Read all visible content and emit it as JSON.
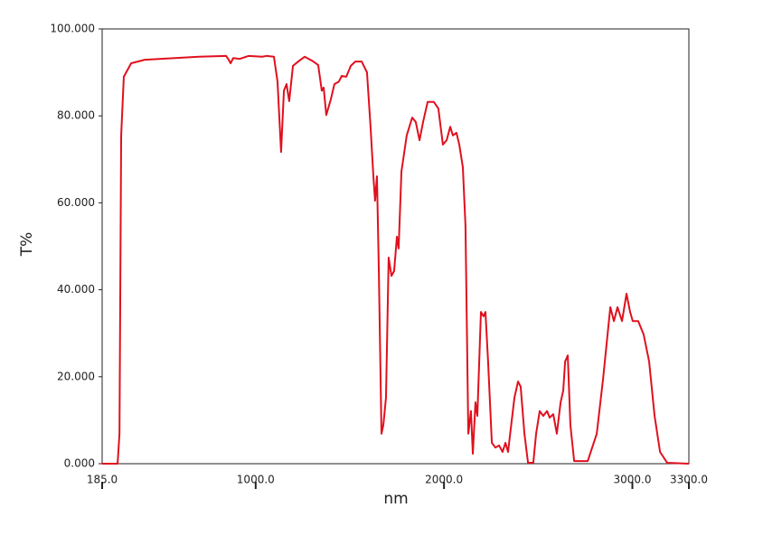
{
  "chart_data": {
    "type": "line",
    "x_label": "nm",
    "y_label": "T%",
    "xlim": [
      185,
      3300
    ],
    "ylim": [
      0,
      100
    ],
    "xticks": [
      {
        "value": 185,
        "label": "185.0"
      },
      {
        "value": 1000,
        "label": "1000.0"
      },
      {
        "value": 2000,
        "label": "2000.0"
      },
      {
        "value": 3000,
        "label": "3000.0"
      },
      {
        "value": 3300,
        "label": "3300.0"
      }
    ],
    "yticks": [
      {
        "value": 0,
        "label": "0.000"
      },
      {
        "value": 20,
        "label": "20.000"
      },
      {
        "value": 40,
        "label": "40.000"
      },
      {
        "value": 60,
        "label": "60.000"
      },
      {
        "value": 80,
        "label": "80.000"
      },
      {
        "value": 100,
        "label": "100.000"
      }
    ],
    "grid": false,
    "series": [
      {
        "color": "#e0101e",
        "x": [
          185,
          267,
          277,
          286,
          300,
          339,
          411,
          699,
          843,
          857,
          867,
          881,
          915,
          963,
          1035,
          1059,
          1097,
          1116,
          1135,
          1150,
          1164,
          1178,
          1198,
          1226,
          1260,
          1299,
          1332,
          1351,
          1361,
          1375,
          1399,
          1418,
          1442,
          1457,
          1481,
          1505,
          1529,
          1563,
          1591,
          1610,
          1625,
          1634,
          1644,
          1654,
          1668,
          1678,
          1692,
          1706,
          1721,
          1735,
          1750,
          1759,
          1774,
          1802,
          1831,
          1850,
          1870,
          1889,
          1913,
          1946,
          1970,
          1994,
          2014,
          2033,
          2047,
          2066,
          2081,
          2100,
          2114,
          2129,
          2143,
          2153,
          2167,
          2177,
          2196,
          2210,
          2220,
          2234,
          2254,
          2273,
          2292,
          2311,
          2326,
          2340,
          2354,
          2374,
          2393,
          2407,
          2427,
          2446,
          2474,
          2489,
          2508,
          2527,
          2547,
          2561,
          2580,
          2599,
          2619,
          2633,
          2643,
          2657,
          2671,
          2691,
          2763,
          2811,
          2844,
          2883,
          2902,
          2921,
          2945,
          2969,
          2988,
          3002,
          3031,
          3060,
          3089,
          3118,
          3147,
          3185,
          3300
        ],
        "values": [
          0,
          0,
          6.9,
          75.5,
          89,
          92.1,
          92.9,
          93.6,
          93.8,
          92.9,
          92.1,
          93.3,
          93.1,
          93.8,
          93.6,
          93.8,
          93.6,
          87.9,
          71.7,
          85.8,
          87.3,
          83.4,
          91.5,
          92.5,
          93.6,
          92.7,
          91.7,
          85.8,
          86.5,
          80.2,
          83.8,
          87.3,
          87.9,
          89.2,
          89,
          91.5,
          92.5,
          92.5,
          90,
          77.5,
          66.1,
          60.5,
          66.1,
          44.3,
          6.9,
          8.9,
          15.2,
          47.4,
          43.2,
          44.3,
          52.2,
          49.5,
          67.2,
          75.5,
          79.6,
          78.6,
          74.4,
          78.6,
          83.2,
          83.2,
          81.7,
          73.4,
          74.4,
          77.5,
          75.5,
          76.1,
          73.4,
          68.2,
          54.7,
          6.9,
          12.1,
          2.3,
          14.1,
          11,
          34.9,
          33.9,
          34.9,
          23.5,
          4.8,
          3.7,
          4.2,
          2.7,
          4.8,
          2.7,
          7.9,
          15.2,
          18.9,
          17.7,
          6.9,
          0.2,
          0.2,
          6.9,
          12.1,
          11,
          12.1,
          10.6,
          11.4,
          6.9,
          14.1,
          16.8,
          23.5,
          24.9,
          8.9,
          0.6,
          0.6,
          6.9,
          19.3,
          36,
          32.8,
          36,
          32.8,
          39.1,
          34.9,
          32.8,
          32.8,
          29.7,
          23.5,
          11,
          2.7,
          0.2,
          0
        ]
      }
    ]
  }
}
